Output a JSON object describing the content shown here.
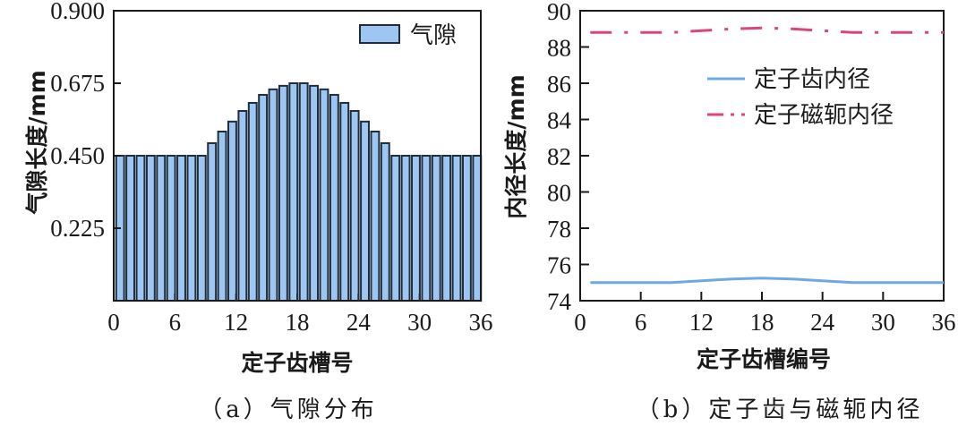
{
  "chart_data": [
    {
      "type": "bar",
      "caption": "（a）气隙分布",
      "title": "",
      "xlabel": "定子齿槽号",
      "ylabel": "气隙长度/mm",
      "xlim": [
        0,
        36
      ],
      "ylim": [
        0,
        0.9
      ],
      "xticks": [
        "0",
        "6",
        "12",
        "18",
        "24",
        "30",
        "36"
      ],
      "yticks": [
        "0.225",
        "0.450",
        "0.675",
        "0.900"
      ],
      "legend": [
        "气隙"
      ],
      "legend_position": "upper right",
      "grid": false,
      "categories": [
        1,
        2,
        3,
        4,
        5,
        6,
        7,
        8,
        9,
        10,
        11,
        12,
        13,
        14,
        15,
        16,
        17,
        18,
        19,
        20,
        21,
        22,
        23,
        24,
        25,
        26,
        27,
        28,
        29,
        30,
        31,
        32,
        33,
        34,
        35,
        36
      ],
      "series": [
        {
          "name": "气隙",
          "color": "#9dc6f2",
          "values": [
            0.45,
            0.45,
            0.45,
            0.45,
            0.45,
            0.45,
            0.45,
            0.45,
            0.45,
            0.489,
            0.525,
            0.556,
            0.589,
            0.614,
            0.639,
            0.656,
            0.667,
            0.675,
            0.675,
            0.667,
            0.656,
            0.639,
            0.614,
            0.589,
            0.556,
            0.525,
            0.489,
            0.45,
            0.45,
            0.45,
            0.45,
            0.45,
            0.45,
            0.45,
            0.45,
            0.45
          ]
        }
      ]
    },
    {
      "type": "line",
      "caption": "（b）定子齿与磁轭内径",
      "title": "",
      "xlabel": "定子齿槽编号",
      "ylabel": "内径长度/mm",
      "xlim": [
        0,
        36
      ],
      "ylim": [
        74,
        90
      ],
      "xticks": [
        "0",
        "6",
        "12",
        "18",
        "24",
        "30",
        "36"
      ],
      "yticks": [
        "74",
        "76",
        "78",
        "80",
        "82",
        "84",
        "86",
        "88",
        "90"
      ],
      "legend": [
        "定子齿内径",
        "定子磁轭内径"
      ],
      "legend_position": "upper right",
      "grid": false,
      "x": [
        1,
        3,
        6,
        9,
        12,
        15,
        18,
        21,
        24,
        27,
        30,
        33,
        36
      ],
      "series": [
        {
          "name": "定子齿内径",
          "color": "#6fa8e8",
          "style": "solid",
          "values": [
            75.0,
            75.0,
            75.0,
            75.0,
            75.1,
            75.2,
            75.25,
            75.2,
            75.1,
            75.0,
            75.0,
            75.0,
            75.0
          ]
        },
        {
          "name": "定子磁轭内径",
          "color": "#d9467e",
          "style": "dashdot",
          "values": [
            88.8,
            88.8,
            88.8,
            88.8,
            88.9,
            89.0,
            89.05,
            89.0,
            88.9,
            88.8,
            88.8,
            88.8,
            88.8
          ]
        }
      ]
    }
  ]
}
